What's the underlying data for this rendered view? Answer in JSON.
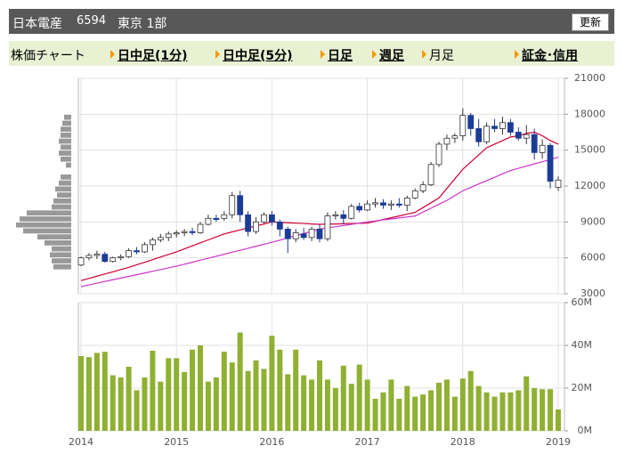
{
  "header": {
    "name": "日本電産",
    "code": "6594",
    "market": "東京 1部",
    "refresh": "更新"
  },
  "nav": {
    "label": "株価チャート",
    "items": [
      "日中足(1分)",
      "日中足(5分)",
      "日足",
      "週足",
      "月足",
      "証金･信用"
    ]
  },
  "chart_data": [
    {
      "type": "candlestick",
      "ylim": [
        3000,
        21000
      ],
      "yticks": [
        3000,
        6000,
        9000,
        12000,
        15000,
        18000,
        21000
      ],
      "grid": true,
      "up_color": "#ffffff",
      "down_color": "#1c3c96",
      "edge_color": "#333333",
      "open": [
        5400,
        6000,
        6200,
        6300,
        5700,
        6000,
        6100,
        6600,
        6500,
        7100,
        7500,
        7700,
        8000,
        8100,
        8200,
        8100,
        8800,
        9300,
        9300,
        9600,
        11200,
        9600,
        8200,
        9000,
        9600,
        9000,
        8400,
        7600,
        8000,
        7700,
        8400,
        7600,
        9500,
        9600,
        9300,
        10300,
        10000,
        10500,
        10600,
        10400,
        10500,
        10400,
        11000,
        11600,
        12100,
        13800,
        15500,
        16000,
        16200,
        17900,
        16800,
        15700,
        17000,
        16800,
        17300,
        16500,
        16000,
        16300,
        14800,
        15400,
        11900
      ],
      "high": [
        6100,
        6400,
        6600,
        6500,
        6100,
        6300,
        6800,
        6900,
        7300,
        7700,
        8000,
        8200,
        8300,
        8400,
        8500,
        9000,
        9600,
        9600,
        9900,
        11500,
        11600,
        9900,
        9400,
        9800,
        9900,
        9200,
        8600,
        8400,
        8500,
        8600,
        8800,
        9800,
        9900,
        10000,
        10500,
        10600,
        10800,
        11000,
        10900,
        10800,
        11000,
        11200,
        11800,
        12400,
        14000,
        15700,
        16300,
        16400,
        18500,
        18100,
        17600,
        17300,
        17600,
        17800,
        17600,
        16900,
        17100,
        16800,
        15900,
        15600,
        12800
      ],
      "low": [
        5300,
        5800,
        5900,
        5600,
        5600,
        5800,
        6000,
        6300,
        6400,
        6600,
        7300,
        7400,
        7700,
        7800,
        7900,
        8000,
        8700,
        9000,
        9100,
        9300,
        9000,
        7800,
        8000,
        8900,
        8700,
        7800,
        6400,
        7300,
        7500,
        7400,
        7300,
        7400,
        9200,
        8800,
        9200,
        9800,
        9900,
        10200,
        10100,
        10000,
        10200,
        9900,
        10900,
        11400,
        12000,
        13600,
        15000,
        15600,
        15800,
        16200,
        15300,
        15500,
        16500,
        16300,
        16200,
        15800,
        15500,
        14200,
        14300,
        11800,
        11600
      ],
      "close": [
        6000,
        6200,
        6300,
        5700,
        6000,
        6100,
        6600,
        6500,
        7100,
        7500,
        7700,
        8000,
        8100,
        8200,
        8100,
        8800,
        9300,
        9200,
        9600,
        11200,
        9600,
        8200,
        9000,
        9600,
        9000,
        8400,
        7600,
        8100,
        7700,
        8400,
        7600,
        9500,
        9600,
        9300,
        10300,
        10000,
        10500,
        10600,
        10400,
        10500,
        10400,
        11000,
        11600,
        12100,
        13800,
        15500,
        16000,
        16200,
        17900,
        16800,
        15700,
        17000,
        16800,
        17300,
        16500,
        16000,
        16300,
        14800,
        15400,
        12400,
        12500
      ],
      "lines": [
        {
          "color": "#cc0033",
          "values": [
            4100,
            4280,
            4470,
            4650,
            4830,
            5020,
            5200,
            5420,
            5630,
            5850,
            6070,
            6280,
            6500,
            6750,
            7000,
            7250,
            7500,
            7750,
            8000,
            8170,
            8330,
            8500,
            8670,
            8830,
            9000,
            8970,
            8930,
            8900,
            8870,
            8830,
            8800,
            8820,
            8830,
            8850,
            8870,
            8880,
            8900,
            9050,
            9200,
            9350,
            9500,
            9650,
            9800,
            10200,
            10600,
            11000,
            11800,
            12600,
            13400,
            14000,
            14600,
            15200,
            15500,
            15800,
            16100,
            16200,
            16400,
            16500,
            16200,
            15800,
            15500
          ]
        },
        {
          "color": "#cc33cc",
          "values": [
            3600,
            3740,
            3880,
            4030,
            4170,
            4310,
            4450,
            4590,
            4730,
            4880,
            5020,
            5160,
            5300,
            5470,
            5630,
            5800,
            5970,
            6130,
            6300,
            6470,
            6630,
            6800,
            6970,
            7130,
            7300,
            7480,
            7670,
            7850,
            8030,
            8220,
            8400,
            8500,
            8600,
            8700,
            8800,
            8900,
            9000,
            9080,
            9170,
            9250,
            9330,
            9420,
            9500,
            9830,
            10150,
            10480,
            10800,
            11200,
            11600,
            11880,
            12170,
            12450,
            12730,
            13020,
            13300,
            13480,
            13670,
            13850,
            14030,
            14220,
            14400
          ]
        }
      ],
      "volume_by_price": {
        "color": "#999999",
        "bins": [
          5000,
          5500,
          6000,
          6500,
          7000,
          7500,
          8000,
          8500,
          9000,
          9500,
          10000,
          10500,
          11000,
          11500,
          12000,
          12500,
          13000,
          13500,
          14000,
          14500,
          15000,
          15500,
          16000,
          16500,
          17000,
          17500,
          18000
        ],
        "values": [
          20,
          22,
          24,
          22,
          30,
          38,
          54,
          62,
          58,
          50,
          22,
          20,
          16,
          18,
          14,
          12,
          0,
          6,
          12,
          14,
          12,
          14,
          12,
          12,
          10,
          8
        ]
      }
    },
    {
      "type": "bar",
      "color": "#8fb032",
      "categories": [
        "2014",
        null,
        null,
        null,
        null,
        null,
        null,
        null,
        null,
        null,
        null,
        null,
        "2015",
        null,
        null,
        null,
        null,
        null,
        null,
        null,
        null,
        null,
        null,
        null,
        "2016",
        null,
        null,
        null,
        null,
        null,
        null,
        null,
        null,
        null,
        null,
        null,
        "2017",
        null,
        null,
        null,
        null,
        null,
        null,
        null,
        null,
        null,
        null,
        null,
        "2018",
        null,
        null,
        null,
        null,
        null,
        null,
        null,
        null,
        null,
        null,
        null,
        "2019"
      ],
      "values": [
        35,
        34.5,
        36.5,
        37,
        26,
        25,
        30,
        19,
        25,
        37.5,
        23,
        34,
        34,
        27.5,
        38,
        40,
        23,
        25,
        37,
        32,
        46,
        28,
        33,
        29,
        44.5,
        38,
        26.5,
        38,
        26,
        24,
        33,
        24,
        20,
        30.5,
        22,
        31,
        24,
        15,
        18,
        24,
        15,
        21,
        16,
        17,
        19,
        22.5,
        24,
        16,
        24.5,
        28,
        21,
        18,
        16,
        18,
        18,
        19,
        25.5,
        20,
        19.5,
        19.5,
        10
      ],
      "ylim": [
        0,
        60
      ],
      "yticks": [
        {
          "value": 0,
          "label": "0M"
        },
        {
          "value": 20,
          "label": "20M"
        },
        {
          "value": 40,
          "label": "40M"
        },
        {
          "value": 60,
          "label": "60M"
        }
      ],
      "grid": true
    }
  ]
}
